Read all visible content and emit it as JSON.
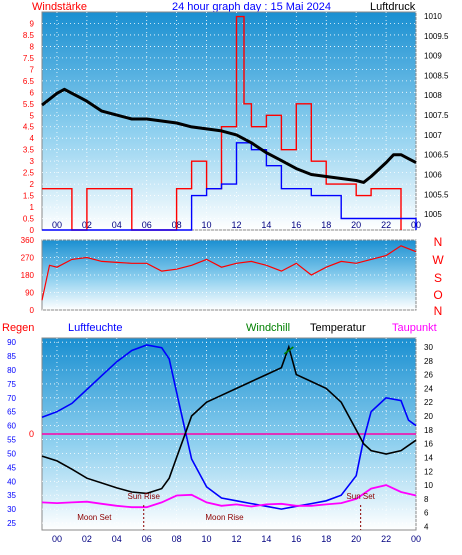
{
  "header": {
    "left_label": "Windstärke",
    "title": "24 hour graph day : 15 Mai 2024",
    "right_label": "Luftdruck"
  },
  "bottom_header": {
    "regen": "Regen",
    "luftfeuchte": "Luftfeuchte",
    "windchill": "Windchill",
    "temperatur": "Temperatur",
    "taupunkt": "Taupunkt"
  },
  "colors": {
    "background": "#ffffff",
    "plot_top": "#2a9fd6",
    "plot_bottom": "#ffffff",
    "wind": "#ff0000",
    "gust": "#0000ff",
    "pressure": "#000000",
    "humidity": "#0000ff",
    "temperature": "#000000",
    "dewpoint": "#ff00ff",
    "windchill": "#008000",
    "regen_text": "#ff0000",
    "luftfeuchte_text": "#0000ff",
    "taupunkt_text": "#ff00ff"
  },
  "chart_data": [
    {
      "type": "line",
      "name": "wind_pressure",
      "x_ticks": [
        "00",
        "02",
        "04",
        "06",
        "08",
        "10",
        "12",
        "14",
        "16",
        "18",
        "20",
        "22",
        "00"
      ],
      "y_left_ticks": [
        "0",
        "0.5",
        "1",
        "1.5",
        "2",
        "2.5",
        "3",
        "3.5",
        "4",
        "4.5",
        "5",
        "5.5",
        "6",
        "6.5",
        "7",
        "7.5",
        "8",
        "8.5",
        "9"
      ],
      "y_right_ticks": [
        "1005",
        "1005.5",
        "1006",
        "1006.5",
        "1007",
        "1007.5",
        "1008",
        "1008.5",
        "1009",
        "1009.5",
        "1010"
      ],
      "y_left_range": [
        0,
        9.5
      ],
      "y_right_range": [
        1004.6,
        1010.1
      ],
      "x_range": [
        -1,
        24
      ],
      "grid": true,
      "series": [
        {
          "type": "line",
          "points": [
            [
              -1,
              1007.75
            ],
            [
              -0.5,
              1007.9
            ],
            [
              0,
              1008.05
            ],
            [
              0.5,
              1008.15
            ],
            [
              1,
              1008.05
            ],
            [
              1.5,
              1007.95
            ],
            [
              2,
              1007.85
            ],
            [
              3,
              1007.6
            ],
            [
              4,
              1007.5
            ],
            [
              5,
              1007.4
            ],
            [
              6,
              1007.4
            ],
            [
              7,
              1007.35
            ],
            [
              8,
              1007.3
            ],
            [
              9,
              1007.2
            ],
            [
              10,
              1007.15
            ],
            [
              11,
              1007.1
            ],
            [
              12,
              1007.0
            ],
            [
              13,
              1006.8
            ],
            [
              14,
              1006.55
            ],
            [
              15,
              1006.35
            ],
            [
              16,
              1006.15
            ],
            [
              17,
              1006.0
            ],
            [
              18,
              1005.95
            ],
            [
              19,
              1005.9
            ],
            [
              20,
              1005.85
            ],
            [
              20.5,
              1005.8
            ],
            [
              21,
              1005.95
            ],
            [
              22,
              1006.3
            ],
            [
              22.5,
              1006.5
            ],
            [
              23,
              1006.5
            ],
            [
              23.5,
              1006.4
            ],
            [
              24,
              1006.3
            ]
          ]
        },
        {
          "type": "step",
          "points": [
            [
              -1,
              1.8
            ],
            [
              0,
              1.8
            ],
            [
              1,
              0
            ],
            [
              2,
              1.8
            ],
            [
              3,
              1.8
            ],
            [
              5,
              0
            ],
            [
              8,
              1.8
            ],
            [
              9,
              3
            ],
            [
              10,
              1.8
            ],
            [
              11,
              4.5
            ],
            [
              12,
              9.3
            ],
            [
              12.5,
              5.5
            ],
            [
              13,
              4.5
            ],
            [
              14,
              5
            ],
            [
              15,
              3.5
            ],
            [
              16,
              5.5
            ],
            [
              17,
              3
            ],
            [
              18,
              2
            ],
            [
              20,
              1.5
            ],
            [
              21,
              1.8
            ],
            [
              23,
              0
            ]
          ]
        },
        {
          "type": "step",
          "points": [
            [
              -1,
              0
            ],
            [
              8,
              0
            ],
            [
              9,
              1.5
            ],
            [
              10,
              1.8
            ],
            [
              11,
              2
            ],
            [
              12,
              3.8
            ],
            [
              13,
              3.5
            ],
            [
              14,
              2.8
            ],
            [
              15,
              1.8
            ],
            [
              17,
              1.5
            ],
            [
              19,
              0.5
            ],
            [
              21,
              0.5
            ],
            [
              23.5,
              0.5
            ],
            [
              24,
              0
            ]
          ]
        }
      ]
    },
    {
      "type": "scatter",
      "name": "wind_direction",
      "y_ticks": [
        "360",
        "270",
        "180",
        "90",
        "0"
      ],
      "y_range": [
        0,
        360
      ],
      "x_range": [
        -1,
        24
      ],
      "directions": [
        "N",
        "W",
        "S",
        "O",
        "N"
      ],
      "series": [
        {
          "type": "line",
          "points": [
            [
              -1,
              50
            ],
            [
              -0.5,
              230
            ],
            [
              0,
              220
            ],
            [
              1,
              260
            ],
            [
              2,
              270
            ],
            [
              3,
              250
            ],
            [
              4,
              245
            ],
            [
              5,
              240
            ],
            [
              6,
              240
            ],
            [
              7,
              200
            ],
            [
              8,
              210
            ],
            [
              9,
              230
            ],
            [
              10,
              260
            ],
            [
              11,
              220
            ],
            [
              12,
              240
            ],
            [
              13,
              250
            ],
            [
              14,
              230
            ],
            [
              15,
              200
            ],
            [
              16,
              240
            ],
            [
              17,
              180
            ],
            [
              18,
              220
            ],
            [
              19,
              250
            ],
            [
              20,
              240
            ],
            [
              21,
              260
            ],
            [
              22,
              280
            ],
            [
              23,
              330
            ],
            [
              24,
              300
            ]
          ]
        }
      ]
    },
    {
      "type": "line",
      "name": "temperature_humidity",
      "x_ticks": [
        "00",
        "02",
        "04",
        "06",
        "08",
        "10",
        "12",
        "14",
        "16",
        "18",
        "20",
        "22",
        "00"
      ],
      "y_left_ticks": [
        "25",
        "30",
        "35",
        "40",
        "45",
        "50",
        "55",
        "60",
        "65",
        "70",
        "75",
        "80",
        "85",
        "90"
      ],
      "y_right_ticks": [
        "4",
        "6",
        "8",
        "10",
        "12",
        "14",
        "16",
        "18",
        "20",
        "22",
        "24",
        "26",
        "28",
        "30"
      ],
      "y_left_range": [
        22.5,
        91.5
      ],
      "y_right_range": [
        3.5,
        31.3
      ],
      "x_range": [
        -1,
        24
      ],
      "regen_value": "0",
      "grid": true,
      "annotations": [
        "Sun Rise",
        "Sun Set",
        "Moon Set",
        "Moon Rise"
      ],
      "series": [
        {
          "type": "line",
          "points": [
            [
              -1,
              63
            ],
            [
              0,
              65
            ],
            [
              1,
              68
            ],
            [
              2,
              73
            ],
            [
              3,
              78
            ],
            [
              4,
              83
            ],
            [
              5,
              87
            ],
            [
              6,
              89
            ],
            [
              7,
              88
            ],
            [
              7.5,
              84
            ],
            [
              8,
              72
            ],
            [
              8.5,
              60
            ],
            [
              9,
              48
            ],
            [
              10,
              38
            ],
            [
              11,
              34
            ],
            [
              12,
              33
            ],
            [
              13,
              32
            ],
            [
              14,
              31
            ],
            [
              15,
              30
            ],
            [
              16,
              31
            ],
            [
              17,
              32
            ],
            [
              18,
              33
            ],
            [
              19,
              35
            ],
            [
              20,
              42
            ],
            [
              20.5,
              55
            ],
            [
              21,
              65
            ],
            [
              22,
              70
            ],
            [
              23,
              69
            ],
            [
              23.5,
              62
            ],
            [
              24,
              60
            ]
          ]
        },
        {
          "type": "line",
          "points": [
            [
              -1,
              14.2
            ],
            [
              0,
              13.5
            ],
            [
              1,
              12.3
            ],
            [
              2,
              11.0
            ],
            [
              3,
              10.3
            ],
            [
              4,
              9.6
            ],
            [
              5,
              9.0
            ],
            [
              6,
              8.8
            ],
            [
              7,
              9.5
            ],
            [
              7.5,
              11.0
            ],
            [
              8,
              14.0
            ],
            [
              8.5,
              17.0
            ],
            [
              9,
              20.0
            ],
            [
              10,
              22.0
            ],
            [
              11,
              23.0
            ],
            [
              12,
              24.0
            ],
            [
              13,
              25.0
            ],
            [
              14,
              26.0
            ],
            [
              15,
              27.0
            ],
            [
              15.5,
              30.0
            ],
            [
              16,
              26.0
            ],
            [
              17,
              25.0
            ],
            [
              18,
              24.0
            ],
            [
              19,
              22.0
            ],
            [
              20,
              18.0
            ],
            [
              20.5,
              16.0
            ],
            [
              21,
              15.0
            ],
            [
              22,
              14.5
            ],
            [
              23,
              15.0
            ],
            [
              24,
              16.5
            ]
          ]
        },
        {
          "type": "line",
          "points": [
            [
              -1,
              7.5
            ],
            [
              0,
              7.4
            ],
            [
              1,
              7.5
            ],
            [
              2,
              7.6
            ],
            [
              3,
              7.3
            ],
            [
              4,
              7.0
            ],
            [
              5,
              6.8
            ],
            [
              6,
              6.8
            ],
            [
              7,
              7.5
            ],
            [
              8,
              8.5
            ],
            [
              9,
              8.6
            ],
            [
              10,
              7.5
            ],
            [
              11,
              7.0
            ],
            [
              12,
              7.2
            ],
            [
              13,
              6.9
            ],
            [
              14,
              7.2
            ],
            [
              15,
              7.3
            ],
            [
              16,
              7.0
            ],
            [
              17,
              7.0
            ],
            [
              18,
              7.2
            ],
            [
              19,
              7.4
            ],
            [
              20,
              8.0
            ],
            [
              21,
              9.5
            ],
            [
              22,
              10.0
            ],
            [
              23,
              9.0
            ],
            [
              24,
              8.5
            ]
          ]
        },
        {
          "type": "line",
          "points": [
            [
              15.2,
              29.0
            ],
            [
              15.8,
              30.0
            ]
          ]
        }
      ]
    }
  ]
}
